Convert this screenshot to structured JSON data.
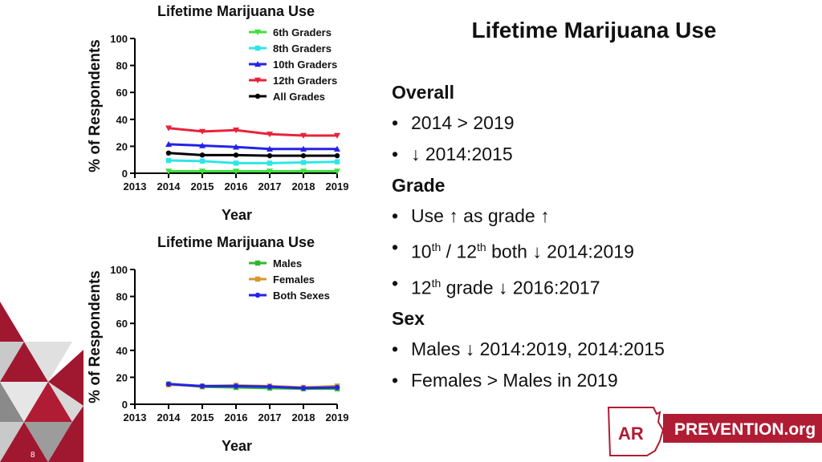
{
  "slide": {
    "title": "Lifetime Marijuana Use",
    "page_number": "8",
    "logo_mark": "AR",
    "logo_text": "PREVENTION.org",
    "sections": [
      {
        "heading": "Overall",
        "bullets": [
          "2014 > 2019",
          "↓ 2014:2015"
        ]
      },
      {
        "heading": "Grade",
        "bullets": [
          "Use ↑ as grade ↑"
        ]
      },
      {
        "heading": "Sex",
        "bullets": [
          "Males ↓ 2014:2019, 2014:2015",
          "Females > Males in 2019"
        ]
      }
    ],
    "rich_bullets": {
      "b3_pre": "10",
      "b3_sup1": "th",
      "b3_mid": " / 12",
      "b3_sup2": "th",
      "b3_post": " both ↓ 2014:2019",
      "b4_pre": "12",
      "b4_sup": "th",
      "b4_post": " grade ↓ 2016:2017"
    }
  },
  "chart_data": [
    {
      "type": "line",
      "title": "Lifetime Marijuana Use",
      "xlabel": "Year",
      "ylabel": "% of Respondents",
      "x": [
        2014,
        2015,
        2016,
        2017,
        2018,
        2019
      ],
      "xticks": [
        "2013",
        "2014",
        "2015",
        "2016",
        "2017",
        "2018",
        "2019"
      ],
      "xlim": [
        2013,
        2019
      ],
      "ylim": [
        0,
        100
      ],
      "yticks": [
        "0",
        "20",
        "40",
        "60",
        "80",
        "100"
      ],
      "legend_position": "top-right",
      "series": [
        {
          "name": "6th Graders",
          "color": "#3ee03e",
          "marker": "triangle-down",
          "values": [
            1.5,
            1.5,
            1.5,
            1.5,
            1.5,
            1.5
          ]
        },
        {
          "name": "8th Graders",
          "color": "#2ee6e6",
          "marker": "square",
          "values": [
            9.5,
            9.0,
            7.5,
            7.5,
            8.0,
            8.5
          ]
        },
        {
          "name": "10th Graders",
          "color": "#2323e8",
          "marker": "triangle-up",
          "values": [
            21.5,
            20.5,
            19.5,
            18.0,
            18.0,
            18.0
          ]
        },
        {
          "name": "12th Graders",
          "color": "#e8233a",
          "marker": "triangle-down",
          "values": [
            33.5,
            31.0,
            32.0,
            29.0,
            28.0,
            28.0
          ]
        },
        {
          "name": "All Grades",
          "color": "#000000",
          "marker": "circle",
          "values": [
            15.0,
            13.5,
            13.5,
            13.0,
            13.0,
            13.0
          ]
        }
      ]
    },
    {
      "type": "line",
      "title": "Lifetime Marijuana Use",
      "xlabel": "Year",
      "ylabel": "% of Respondents",
      "x": [
        2014,
        2015,
        2016,
        2017,
        2018,
        2019
      ],
      "xticks": [
        "2013",
        "2014",
        "2015",
        "2016",
        "2017",
        "2018",
        "2019"
      ],
      "xlim": [
        2013,
        2019
      ],
      "ylim": [
        0,
        100
      ],
      "yticks": [
        "0",
        "20",
        "40",
        "60",
        "80",
        "100"
      ],
      "legend_position": "top-right",
      "series": [
        {
          "name": "Males",
          "color": "#2eb82e",
          "marker": "square",
          "values": [
            15.0,
            13.0,
            12.5,
            12.0,
            11.5,
            11.5
          ]
        },
        {
          "name": "Females",
          "color": "#d9962b",
          "marker": "square",
          "values": [
            14.5,
            13.5,
            14.0,
            13.5,
            12.5,
            13.5
          ]
        },
        {
          "name": "Both Sexes",
          "color": "#2323e8",
          "marker": "circle",
          "values": [
            15.0,
            13.5,
            13.5,
            13.0,
            12.0,
            12.5
          ]
        }
      ]
    }
  ]
}
